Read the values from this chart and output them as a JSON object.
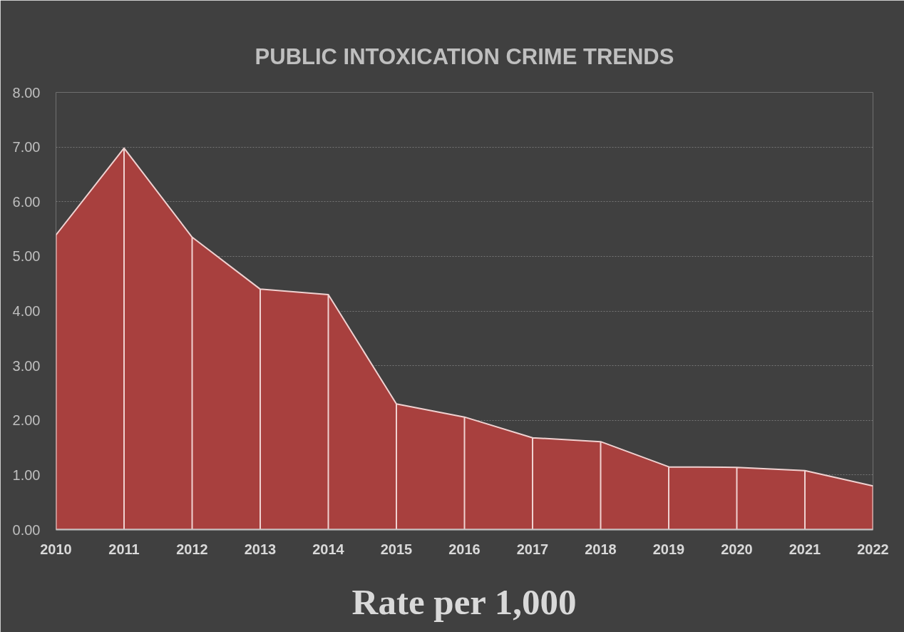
{
  "chart_data": {
    "type": "area",
    "title": "PUBLIC INTOXICATION CRIME TRENDS",
    "xlabel": "Rate per 1,000",
    "categories": [
      "2010",
      "2011",
      "2012",
      "2013",
      "2014",
      "2015",
      "2016",
      "2017",
      "2018",
      "2019",
      "2020",
      "2021",
      "2022"
    ],
    "series": [
      {
        "color": "#a8403e",
        "values": [
          5.39,
          6.98,
          5.35,
          4.4,
          4.3,
          2.3,
          2.06,
          1.68,
          1.61,
          1.15,
          1.14,
          1.08,
          0.8
        ]
      }
    ],
    "ylim": [
      0,
      8
    ],
    "yticks": [
      {
        "value": 0,
        "label": "0.00"
      },
      {
        "value": 1,
        "label": "1.00"
      },
      {
        "value": 2,
        "label": "2.00"
      },
      {
        "value": 3,
        "label": "3.00"
      },
      {
        "value": 4,
        "label": "4.00"
      },
      {
        "value": 5,
        "label": "5.00"
      },
      {
        "value": 6,
        "label": "6.00"
      },
      {
        "value": 7,
        "label": "7.00"
      },
      {
        "value": 8,
        "label": "8.00"
      }
    ],
    "grid": "y"
  }
}
